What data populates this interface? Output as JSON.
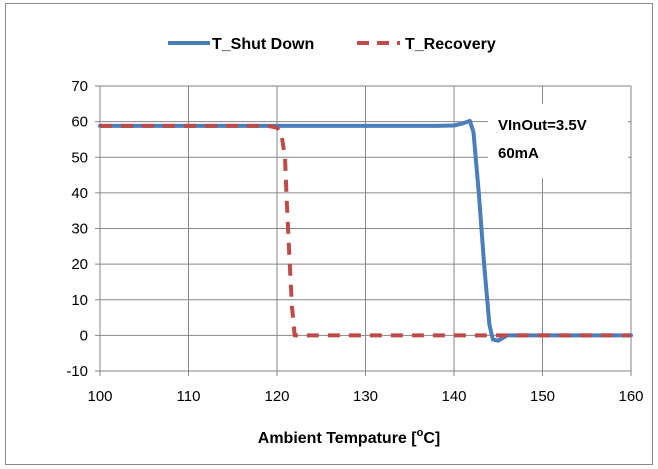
{
  "chart_data": {
    "type": "line",
    "xlabel": "Ambient Tempature [",
    "xlabel_sup": "o",
    "xlabel_suffix": "C]",
    "xlim": [
      100,
      160
    ],
    "ylim": [
      -10,
      70
    ],
    "xticks": [
      "100",
      "110",
      "120",
      "130",
      "140",
      "150",
      "160"
    ],
    "yticks": [
      "-10",
      "0",
      "10",
      "20",
      "30",
      "40",
      "50",
      "60",
      "70"
    ],
    "grid": true,
    "legend_position": "top",
    "annotation": [
      "VInOut=3.5V",
      "60mA"
    ],
    "series": [
      {
        "name": "T_Shut Down",
        "color": "#4a7ebb",
        "style": "solid",
        "x": [
          100,
          110,
          120,
          130,
          138,
          140,
          141,
          141.8,
          142.2,
          142.8,
          143.4,
          144,
          144.4,
          145,
          145.6,
          146,
          150,
          160
        ],
        "y": [
          58.8,
          58.8,
          58.8,
          58.8,
          58.8,
          58.9,
          59.5,
          60.2,
          57,
          40,
          20,
          3,
          -1.2,
          -1.5,
          -0.6,
          0,
          0,
          0
        ]
      },
      {
        "name": "T_Recovery",
        "color": "#be4b48",
        "style": "dashed",
        "x": [
          100,
          110,
          119,
          120,
          120.5,
          120.9,
          121.1,
          121.4,
          121.7,
          122,
          122.4,
          130,
          140,
          150,
          160
        ],
        "y": [
          58.8,
          58.8,
          58.8,
          58.3,
          56.5,
          50,
          38,
          22,
          8,
          0,
          0,
          0,
          0,
          0,
          0
        ]
      }
    ]
  }
}
